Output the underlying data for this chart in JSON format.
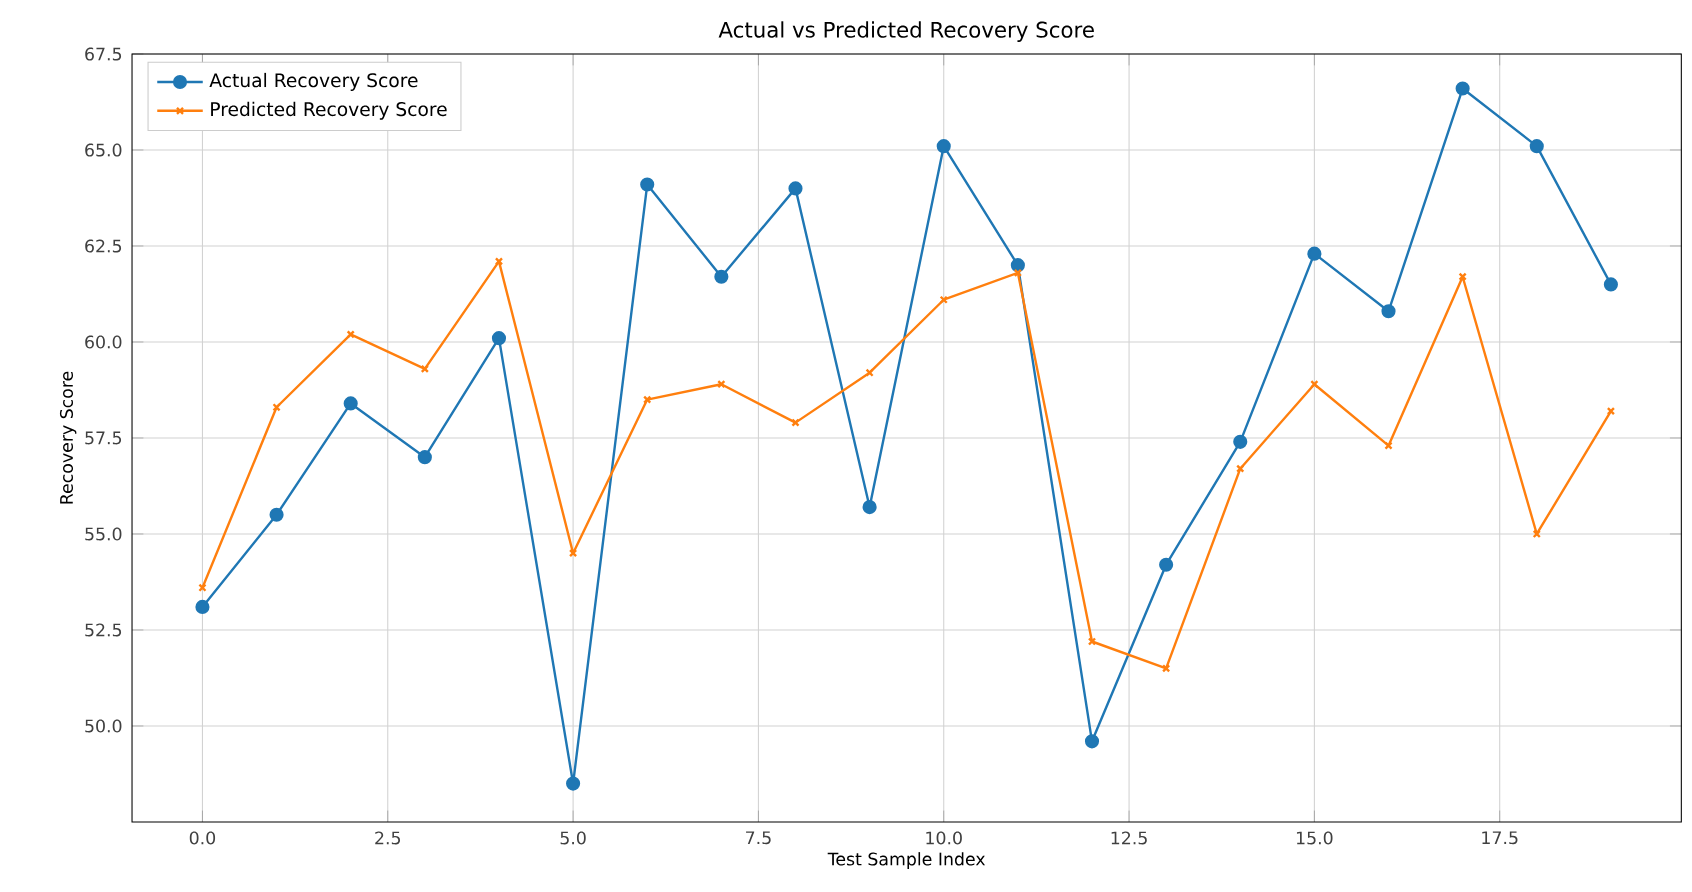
{
  "chart_data": {
    "type": "line",
    "title": "Actual vs Predicted Recovery Score",
    "xlabel": "Test Sample Index",
    "ylabel": "Recovery Score",
    "x": [
      0,
      1,
      2,
      3,
      4,
      5,
      6,
      7,
      8,
      9,
      10,
      11,
      12,
      13,
      14,
      15,
      16,
      17,
      18,
      19
    ],
    "series": [
      {
        "name": "Actual Recovery Score",
        "color": "#1f77b4",
        "marker": "circle",
        "values": [
          53.1,
          55.5,
          58.4,
          57.0,
          60.1,
          48.5,
          64.1,
          61.7,
          64.0,
          55.7,
          65.1,
          62.0,
          49.6,
          54.2,
          57.4,
          62.3,
          60.8,
          66.6,
          65.1,
          61.5
        ]
      },
      {
        "name": "Predicted Recovery Score",
        "color": "#ff7f0e",
        "marker": "cross",
        "values": [
          53.6,
          58.3,
          60.2,
          59.3,
          62.1,
          54.5,
          58.5,
          58.9,
          57.9,
          59.2,
          61.1,
          61.8,
          52.2,
          51.5,
          56.7,
          58.9,
          57.3,
          61.7,
          55.0,
          58.2
        ]
      }
    ],
    "xlim": [
      -0.95,
      19.95
    ],
    "ylim": [
      47.5,
      67.5
    ],
    "xticks": [
      {
        "value": 0,
        "label": "0.0"
      },
      {
        "value": 2.5,
        "label": "2.5"
      },
      {
        "value": 5,
        "label": "5.0"
      },
      {
        "value": 7.5,
        "label": "7.5"
      },
      {
        "value": 10,
        "label": "10.0"
      },
      {
        "value": 12.5,
        "label": "12.5"
      },
      {
        "value": 15,
        "label": "15.0"
      },
      {
        "value": 17.5,
        "label": "17.5"
      }
    ],
    "yticks": [
      {
        "value": 50,
        "label": "50.0"
      },
      {
        "value": 52.5,
        "label": "52.5"
      },
      {
        "value": 55,
        "label": "55.0"
      },
      {
        "value": 57.5,
        "label": "57.5"
      },
      {
        "value": 60,
        "label": "60.0"
      },
      {
        "value": 62.5,
        "label": "62.5"
      },
      {
        "value": 65,
        "label": "65.0"
      },
      {
        "value": 67.5,
        "label": "67.5"
      }
    ],
    "grid": true,
    "legend": "top left",
    "line_style": "solid"
  }
}
